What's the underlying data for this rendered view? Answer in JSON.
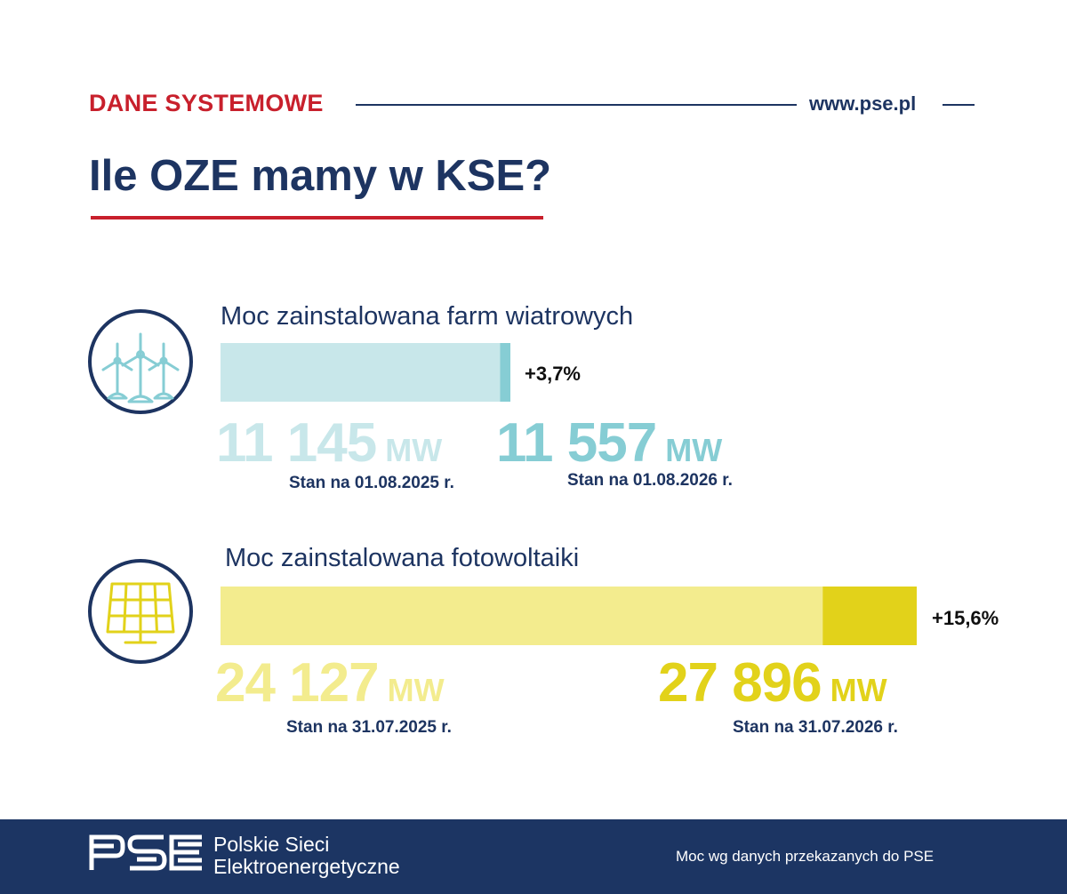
{
  "header": {
    "kicker": "DANE SYSTEMOWE",
    "website": "www.pse.pl",
    "title": "Ile OZE mamy w KSE?"
  },
  "sections": {
    "wind": {
      "title": "Moc zainstalowana farm wiatrowych",
      "icon": "wind-turbines-icon",
      "old_value": "11 145",
      "old_unit": "MW",
      "old_date": "Stan na 01.08.2025 r.",
      "new_value": "11 557",
      "new_unit": "MW",
      "new_date": "Stan na 01.08.2026 r.",
      "change": "+3,7%"
    },
    "pv": {
      "title": "Moc zainstalowana fotowoltaiki",
      "icon": "solar-panel-icon",
      "old_value": "24 127",
      "old_unit": "MW",
      "old_date": "Stan na 31.07.2025 r.",
      "new_value": "27 896",
      "new_unit": "MW",
      "new_date": "Stan na 31.07.2026 r.",
      "change": "+15,6%"
    }
  },
  "chart_data": [
    {
      "type": "bar",
      "title": "Moc zainstalowana farm wiatrowych",
      "categories": [
        "Stan na 01.08.2025 r.",
        "Stan na 01.08.2026 r."
      ],
      "values": [
        11145,
        11557
      ],
      "unit": "MW",
      "change_label": "+3,7%",
      "colors": {
        "base": "#c8e7ea",
        "increase": "#86cdd4"
      }
    },
    {
      "type": "bar",
      "title": "Moc zainstalowana fotowoltaiki",
      "categories": [
        "Stan na 31.07.2025 r.",
        "Stan na 31.07.2026 r."
      ],
      "values": [
        24127,
        27896
      ],
      "unit": "MW",
      "change_label": "+15,6%",
      "colors": {
        "base": "#f3ec8e",
        "increase": "#e2d21a"
      }
    }
  ],
  "footer": {
    "logo_text": "PSE",
    "org_name_line1": "Polskie Sieci",
    "org_name_line2": "Elektroenergetyczne",
    "source_note": "Moc wg danych przekazanych do PSE"
  },
  "colors": {
    "navy": "#1d3461",
    "red": "#c8202c",
    "wind_light": "#c8e7ea",
    "wind_dark": "#86cdd4",
    "pv_light": "#f3ec8e",
    "pv_dark": "#e2d21a"
  }
}
